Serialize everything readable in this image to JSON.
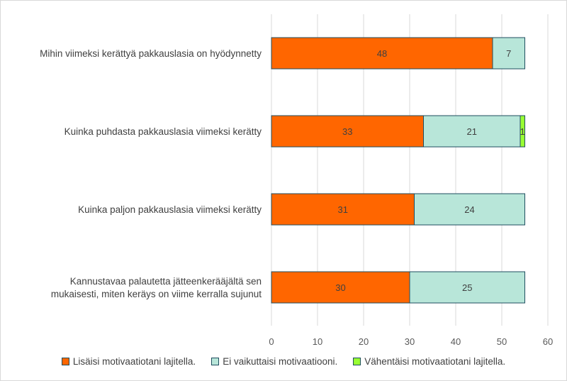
{
  "chart_data": {
    "type": "bar",
    "orientation": "horizontal",
    "stacked": true,
    "categories": [
      "Mihin viimeksi kerättyä pakkauslasia on hyödynnetty",
      "Kuinka puhdasta pakkauslasia viimeksi kerätty",
      "Kuinka paljon pakkauslasia viimeksi kerätty",
      "Kannustavaa palautetta jätteenkerääjältä sen mukaisesti, miten keräys on viime kerralla sujunut"
    ],
    "category_lines": [
      [
        "Mihin viimeksi kerättyä pakkauslasia on hyödynnetty"
      ],
      [
        "Kuinka puhdasta pakkauslasia viimeksi kerätty"
      ],
      [
        "Kuinka paljon pakkauslasia viimeksi kerätty"
      ],
      [
        "Kannustavaa palautetta jätteenkerääjältä sen",
        "mukaisesti, miten keräys on viime kerralla sujunut"
      ]
    ],
    "series": [
      {
        "name": "Lisäisi motivaatiotani lajitella.",
        "color": "#ff6600",
        "values": [
          48,
          33,
          31,
          30
        ]
      },
      {
        "name": "Ei vaikuttaisi motivaatiooni.",
        "color": "#b8e6d9",
        "values": [
          7,
          21,
          24,
          25
        ]
      },
      {
        "name": "Vähentäisi motivaatiotani lajitella.",
        "color": "#99ff33",
        "values": [
          0,
          1,
          0,
          0
        ]
      }
    ],
    "xlim": [
      0,
      60
    ],
    "xticks": [
      0,
      10,
      20,
      30,
      40,
      50,
      60
    ],
    "grid": true,
    "legend_position": "bottom",
    "bar_edge_color": "#1f4e5f"
  }
}
